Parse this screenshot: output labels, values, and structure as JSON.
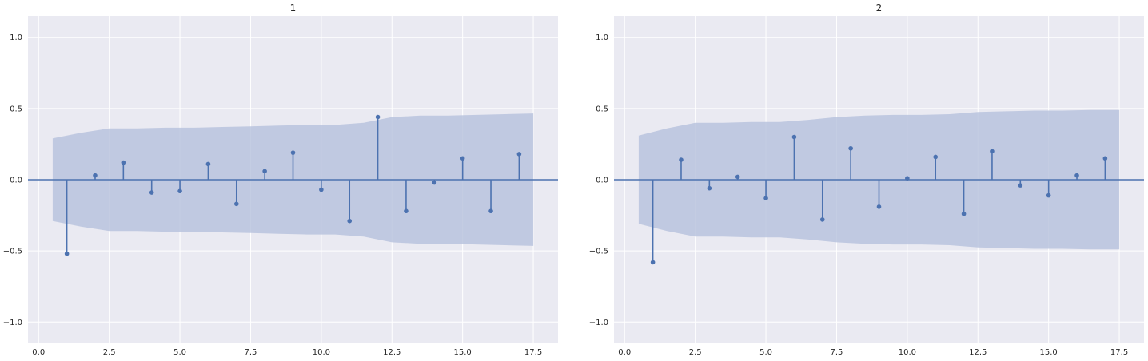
{
  "chart_data": [
    {
      "type": "scatter",
      "subtype": "stem",
      "title": "1",
      "xlabel": "",
      "ylabel": "",
      "xlim": [
        -0.375,
        18.375
      ],
      "ylim": [
        -1.15,
        1.15
      ],
      "xticks": [
        "0.0",
        "2.5",
        "5.0",
        "7.5",
        "10.0",
        "12.5",
        "15.0",
        "17.5"
      ],
      "yticks": [
        "-1.0",
        "-0.5",
        "0.0",
        "0.5",
        "1.0"
      ],
      "grid": true,
      "series": [
        {
          "x": [
            1,
            2,
            3,
            4,
            5,
            6,
            7,
            8,
            9,
            10,
            11,
            12,
            13,
            14,
            15,
            16,
            17
          ],
          "values": [
            -0.52,
            0.03,
            0.12,
            -0.09,
            -0.08,
            0.11,
            -0.17,
            0.06,
            0.19,
            -0.07,
            -0.29,
            0.44,
            -0.22,
            -0.02,
            0.15,
            -0.22,
            0.18
          ]
        }
      ],
      "confidence_band": {
        "x": [
          0.5,
          1.5,
          2.5,
          3.5,
          4.5,
          5.5,
          6.5,
          7.5,
          8.5,
          9.5,
          10.5,
          11.5,
          12.5,
          13.5,
          14.5,
          15.5,
          16.5,
          17.5
        ],
        "upper": [
          0.29,
          0.33,
          0.36,
          0.36,
          0.365,
          0.365,
          0.37,
          0.375,
          0.38,
          0.385,
          0.385,
          0.4,
          0.44,
          0.45,
          0.45,
          0.455,
          0.46,
          0.465
        ]
      },
      "colors": {
        "stem": "#4c72b0",
        "band": "#b5c0dc",
        "background": "#eaeaf2",
        "grid": "#ffffff"
      }
    },
    {
      "type": "scatter",
      "subtype": "stem",
      "title": "2",
      "xlabel": "",
      "ylabel": "",
      "xlim": [
        -0.375,
        18.375
      ],
      "ylim": [
        -1.15,
        1.15
      ],
      "xticks": [
        "0.0",
        "2.5",
        "5.0",
        "7.5",
        "10.0",
        "12.5",
        "15.0",
        "17.5"
      ],
      "yticks": [
        "-1.0",
        "-0.5",
        "0.0",
        "0.5",
        "1.0"
      ],
      "grid": true,
      "series": [
        {
          "x": [
            1,
            2,
            3,
            4,
            5,
            6,
            7,
            8,
            9,
            10,
            11,
            12,
            13,
            14,
            15,
            16,
            17
          ],
          "values": [
            -0.58,
            0.14,
            -0.06,
            0.02,
            -0.13,
            0.3,
            -0.28,
            0.22,
            -0.19,
            0.01,
            0.16,
            -0.24,
            0.2,
            -0.04,
            -0.11,
            0.03,
            0.15
          ]
        }
      ],
      "confidence_band": {
        "x": [
          0.5,
          1.5,
          2.5,
          3.5,
          4.5,
          5.5,
          6.5,
          7.5,
          8.5,
          9.5,
          10.5,
          11.5,
          12.5,
          13.5,
          14.5,
          15.5,
          16.5,
          17.5
        ],
        "upper": [
          0.31,
          0.36,
          0.4,
          0.4,
          0.405,
          0.405,
          0.42,
          0.44,
          0.45,
          0.455,
          0.455,
          0.46,
          0.475,
          0.48,
          0.485,
          0.485,
          0.49,
          0.49
        ]
      },
      "colors": {
        "stem": "#4c72b0",
        "band": "#b5c0dc",
        "background": "#eaeaf2",
        "grid": "#ffffff"
      }
    }
  ]
}
